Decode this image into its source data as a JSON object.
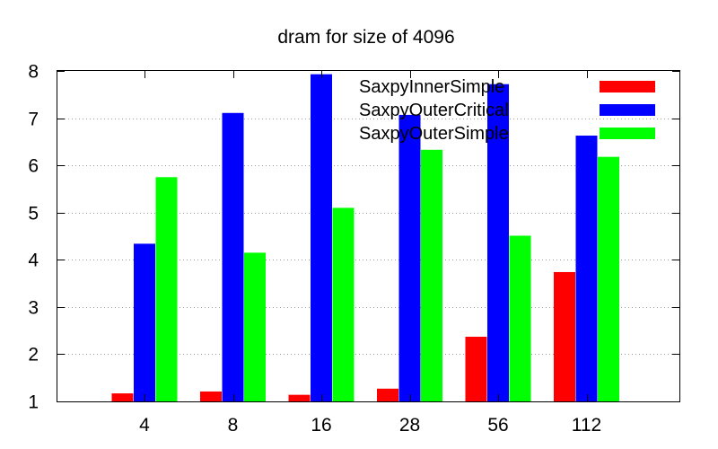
{
  "chart_data": {
    "type": "bar",
    "title": "dram for size of 4096",
    "xlabel": "",
    "ylabel": "",
    "categories": [
      "4",
      "8",
      "16",
      "28",
      "56",
      "112"
    ],
    "series": [
      {
        "name": "SaxpyInnerSimple",
        "color": "#ff0000",
        "values": [
          1.17,
          1.21,
          1.14,
          1.27,
          2.37,
          3.74
        ]
      },
      {
        "name": "SaxpyOuterCritical",
        "color": "#0000ff",
        "values": [
          4.34,
          7.11,
          7.93,
          7.07,
          7.72,
          6.63
        ]
      },
      {
        "name": "SaxpyOuterSimple",
        "color": "#00ff00",
        "values": [
          5.75,
          4.15,
          5.1,
          6.33,
          4.51,
          6.18
        ]
      }
    ],
    "ylim": [
      1,
      8
    ],
    "yticks": [
      "1",
      "2",
      "3",
      "4",
      "5",
      "6",
      "7",
      "8"
    ],
    "grid": true,
    "legend_position": "top-right"
  }
}
